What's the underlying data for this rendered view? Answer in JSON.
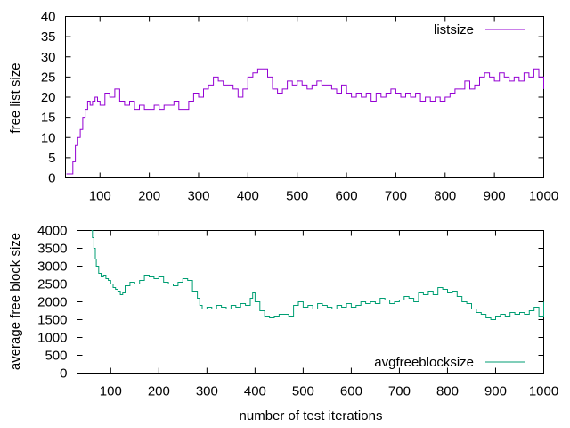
{
  "colors": {
    "series_1": "#9400d3",
    "series_2": "#009e73",
    "axis": "#000000",
    "background": "#ffffff"
  },
  "chart_data": [
    {
      "type": "line",
      "xlabel": "",
      "ylabel": "free list size",
      "xlim": [
        30,
        1000
      ],
      "ylim": [
        0,
        40
      ],
      "xticks": [
        "100",
        "200",
        "300",
        "400",
        "500",
        "600",
        "700",
        "800",
        "900",
        "1000"
      ],
      "yticks": [
        "0",
        "5",
        "10",
        "15",
        "20",
        "25",
        "30",
        "35",
        "40"
      ],
      "legend_position": "top-right",
      "series": [
        {
          "name": "listsize",
          "x": [
            32,
            40,
            45,
            50,
            55,
            60,
            65,
            70,
            75,
            80,
            85,
            90,
            95,
            100,
            110,
            120,
            130,
            140,
            150,
            160,
            170,
            180,
            190,
            200,
            210,
            220,
            230,
            240,
            250,
            260,
            270,
            280,
            290,
            300,
            310,
            320,
            330,
            340,
            350,
            360,
            370,
            380,
            390,
            400,
            410,
            420,
            430,
            440,
            450,
            460,
            470,
            480,
            490,
            500,
            510,
            520,
            530,
            540,
            550,
            560,
            570,
            580,
            590,
            600,
            610,
            620,
            630,
            640,
            650,
            660,
            670,
            680,
            690,
            700,
            710,
            720,
            730,
            740,
            750,
            760,
            770,
            780,
            790,
            800,
            810,
            820,
            830,
            840,
            850,
            860,
            870,
            880,
            890,
            900,
            910,
            920,
            930,
            940,
            950,
            960,
            970,
            980,
            990,
            1000
          ],
          "y": [
            1,
            1,
            4,
            8,
            10,
            12,
            15,
            17,
            19,
            18,
            19,
            20,
            19,
            18,
            21,
            20,
            22,
            19,
            18,
            19,
            17,
            18,
            17,
            17,
            18,
            17,
            18,
            18,
            19,
            17,
            17,
            19,
            21,
            20,
            22,
            23,
            25,
            24,
            23,
            23,
            22,
            20,
            22,
            25,
            26,
            27,
            27,
            25,
            22,
            21,
            22,
            24,
            23,
            24,
            23,
            22,
            23,
            24,
            23,
            23,
            22,
            21,
            23,
            21,
            20,
            21,
            20,
            21,
            19,
            21,
            20,
            21,
            22,
            21,
            20,
            21,
            20,
            21,
            19,
            20,
            19,
            20,
            19,
            20,
            21,
            22,
            22,
            24,
            22,
            23,
            25,
            26,
            25,
            24,
            26,
            25,
            24,
            25,
            24,
            26,
            25,
            27,
            25,
            22
          ]
        }
      ]
    },
    {
      "type": "line",
      "xlabel": "number of test iterations",
      "ylabel": "average free block size",
      "xlim": [
        30,
        1000
      ],
      "ylim": [
        0,
        4000
      ],
      "xticks": [
        "100",
        "200",
        "300",
        "400",
        "500",
        "600",
        "700",
        "800",
        "900",
        "1000"
      ],
      "yticks": [
        "0",
        "500",
        "1000",
        "1500",
        "2000",
        "2500",
        "3000",
        "3500",
        "4000"
      ],
      "legend_position": "bottom-right",
      "series": [
        {
          "name": "avgfreeblocksize",
          "x": [
            60,
            62,
            65,
            68,
            70,
            75,
            80,
            85,
            90,
            95,
            100,
            105,
            110,
            115,
            120,
            125,
            130,
            140,
            150,
            160,
            170,
            180,
            190,
            200,
            210,
            220,
            230,
            240,
            250,
            260,
            270,
            280,
            285,
            290,
            300,
            310,
            320,
            330,
            340,
            350,
            360,
            370,
            380,
            390,
            395,
            400,
            410,
            420,
            430,
            440,
            450,
            460,
            470,
            480,
            490,
            500,
            510,
            520,
            530,
            540,
            550,
            560,
            570,
            580,
            590,
            600,
            610,
            620,
            630,
            640,
            650,
            660,
            670,
            680,
            690,
            700,
            710,
            720,
            730,
            740,
            750,
            760,
            770,
            780,
            790,
            800,
            810,
            820,
            830,
            840,
            850,
            860,
            870,
            880,
            890,
            900,
            910,
            920,
            930,
            940,
            950,
            960,
            970,
            980,
            990,
            1000
          ],
          "y": [
            4000,
            3800,
            3500,
            3200,
            3000,
            2800,
            2700,
            2750,
            2650,
            2600,
            2500,
            2400,
            2350,
            2300,
            2200,
            2250,
            2450,
            2550,
            2500,
            2600,
            2750,
            2700,
            2650,
            2700,
            2550,
            2500,
            2450,
            2550,
            2650,
            2600,
            2300,
            2100,
            1900,
            1800,
            1850,
            1800,
            1900,
            1850,
            1800,
            1900,
            1850,
            1950,
            1900,
            2100,
            2250,
            2000,
            1750,
            1600,
            1550,
            1600,
            1650,
            1650,
            1600,
            1900,
            2000,
            1850,
            1900,
            1800,
            1950,
            1900,
            1850,
            1800,
            1900,
            1850,
            1950,
            1850,
            1900,
            2000,
            1950,
            2000,
            1950,
            2100,
            2050,
            1950,
            2000,
            2050,
            2150,
            2100,
            2000,
            2250,
            2200,
            2300,
            2200,
            2400,
            2350,
            2250,
            2300,
            2150,
            2000,
            1950,
            1800,
            1700,
            1650,
            1550,
            1500,
            1600,
            1650,
            1600,
            1700,
            1650,
            1700,
            1650,
            1750,
            1850,
            1600,
            2000
          ]
        }
      ]
    }
  ]
}
